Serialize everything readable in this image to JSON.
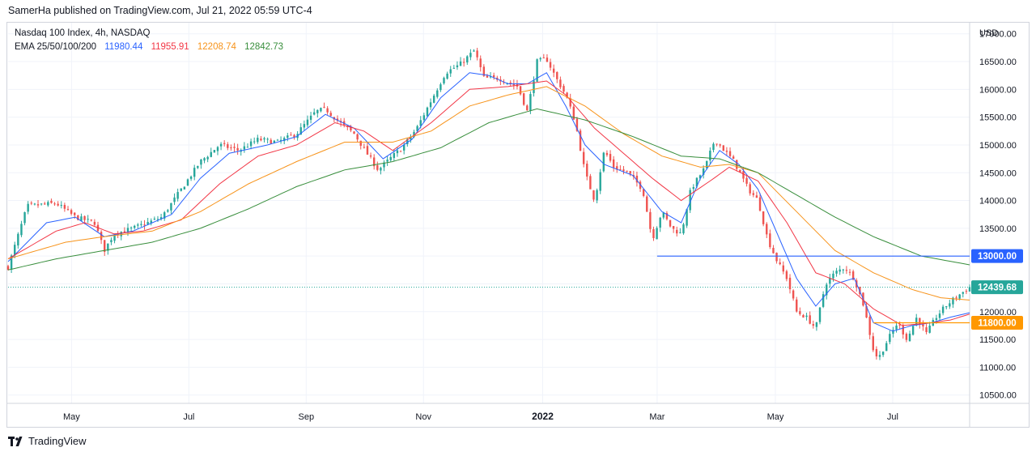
{
  "header": {
    "published": "SamerHa published on TradingView.com, Jul 21, 2022 05:59 UTC-4"
  },
  "legend": {
    "symbol": "Nasdaq 100 Index, 4h, NASDAQ",
    "ema_label": "EMA 25/50/100/200",
    "ema_values": [
      {
        "value": "11980.44",
        "color": "#2962ff"
      },
      {
        "value": "11955.91",
        "color": "#f23645"
      },
      {
        "value": "12208.74",
        "color": "#f7931a"
      },
      {
        "value": "12842.73",
        "color": "#388e3c"
      }
    ]
  },
  "footer": {
    "brand": "TradingView"
  },
  "chart_data": {
    "type": "candlestick",
    "currency": "USD",
    "ylim": [
      10350,
      17200
    ],
    "y_ticks": [
      "10500.00",
      "11000.00",
      "11500.00",
      "12000.00",
      "12500.00",
      "13000.00",
      "13500.00",
      "14000.00",
      "14500.00",
      "15000.00",
      "15500.00",
      "16000.00",
      "16500.00",
      "17000.00"
    ],
    "x_ticks": [
      {
        "label": "May",
        "t": 0.066,
        "bold": false
      },
      {
        "label": "Jul",
        "t": 0.188,
        "bold": false
      },
      {
        "label": "Sep",
        "t": 0.31,
        "bold": false
      },
      {
        "label": "Nov",
        "t": 0.432,
        "bold": false
      },
      {
        "label": "2022",
        "t": 0.556,
        "bold": true
      },
      {
        "label": "Mar",
        "t": 0.675,
        "bold": false
      },
      {
        "label": "May",
        "t": 0.798,
        "bold": false
      },
      {
        "label": "Jul",
        "t": 0.92,
        "bold": false
      }
    ],
    "price_path": [
      [
        0,
        12800
      ],
      [
        0.02,
        13900
      ],
      [
        0.05,
        13950
      ],
      [
        0.07,
        13700
      ],
      [
        0.09,
        13600
      ],
      [
        0.1,
        13100
      ],
      [
        0.11,
        13400
      ],
      [
        0.13,
        13500
      ],
      [
        0.16,
        13700
      ],
      [
        0.18,
        14200
      ],
      [
        0.2,
        14700
      ],
      [
        0.22,
        15000
      ],
      [
        0.24,
        14900
      ],
      [
        0.26,
        15100
      ],
      [
        0.28,
        15050
      ],
      [
        0.3,
        15200
      ],
      [
        0.32,
        15600
      ],
      [
        0.33,
        15650
      ],
      [
        0.345,
        15400
      ],
      [
        0.36,
        15200
      ],
      [
        0.375,
        14800
      ],
      [
        0.385,
        14550
      ],
      [
        0.4,
        14800
      ],
      [
        0.41,
        14950
      ],
      [
        0.425,
        15300
      ],
      [
        0.44,
        15800
      ],
      [
        0.455,
        16300
      ],
      [
        0.47,
        16450
      ],
      [
        0.485,
        16700
      ],
      [
        0.495,
        16200
      ],
      [
        0.51,
        16200
      ],
      [
        0.53,
        16050
      ],
      [
        0.54,
        15600
      ],
      [
        0.55,
        16500
      ],
      [
        0.56,
        16550
      ],
      [
        0.57,
        16200
      ],
      [
        0.58,
        15900
      ],
      [
        0.59,
        15400
      ],
      [
        0.6,
        14500
      ],
      [
        0.61,
        14000
      ],
      [
        0.62,
        14900
      ],
      [
        0.63,
        14600
      ],
      [
        0.645,
        14500
      ],
      [
        0.66,
        14200
      ],
      [
        0.67,
        13300
      ],
      [
        0.68,
        13800
      ],
      [
        0.69,
        13500
      ],
      [
        0.7,
        13400
      ],
      [
        0.71,
        14200
      ],
      [
        0.725,
        14600
      ],
      [
        0.735,
        15100
      ],
      [
        0.745,
        14900
      ],
      [
        0.755,
        14700
      ],
      [
        0.77,
        14200
      ],
      [
        0.78,
        14000
      ],
      [
        0.79,
        13300
      ],
      [
        0.8,
        12900
      ],
      [
        0.81,
        12600
      ],
      [
        0.82,
        12000
      ],
      [
        0.83,
        11900
      ],
      [
        0.84,
        11700
      ],
      [
        0.85,
        12500
      ],
      [
        0.86,
        12700
      ],
      [
        0.87,
        12800
      ],
      [
        0.88,
        12600
      ],
      [
        0.89,
        12100
      ],
      [
        0.9,
        11300
      ],
      [
        0.905,
        11150
      ],
      [
        0.915,
        11500
      ],
      [
        0.925,
        11800
      ],
      [
        0.935,
        11500
      ],
      [
        0.945,
        11900
      ],
      [
        0.955,
        11600
      ],
      [
        0.965,
        11900
      ],
      [
        0.975,
        12100
      ],
      [
        0.985,
        12250
      ],
      [
        1,
        12439.68
      ]
    ],
    "ema": [
      {
        "name": "EMA 25",
        "value": 11980.44,
        "color": "#2962ff",
        "path": [
          [
            0,
            12900
          ],
          [
            0.04,
            13600
          ],
          [
            0.07,
            13700
          ],
          [
            0.1,
            13350
          ],
          [
            0.13,
            13450
          ],
          [
            0.17,
            13750
          ],
          [
            0.2,
            14400
          ],
          [
            0.23,
            14850
          ],
          [
            0.27,
            15000
          ],
          [
            0.3,
            15150
          ],
          [
            0.33,
            15550
          ],
          [
            0.36,
            15300
          ],
          [
            0.39,
            14750
          ],
          [
            0.42,
            15100
          ],
          [
            0.45,
            15850
          ],
          [
            0.48,
            16300
          ],
          [
            0.5,
            16250
          ],
          [
            0.52,
            16100
          ],
          [
            0.54,
            16100
          ],
          [
            0.56,
            16300
          ],
          [
            0.58,
            15700
          ],
          [
            0.6,
            15000
          ],
          [
            0.62,
            14650
          ],
          [
            0.65,
            14450
          ],
          [
            0.68,
            13800
          ],
          [
            0.7,
            13600
          ],
          [
            0.72,
            14400
          ],
          [
            0.74,
            14900
          ],
          [
            0.76,
            14650
          ],
          [
            0.78,
            14200
          ],
          [
            0.8,
            13400
          ],
          [
            0.82,
            12600
          ],
          [
            0.84,
            12100
          ],
          [
            0.86,
            12500
          ],
          [
            0.88,
            12600
          ],
          [
            0.9,
            11800
          ],
          [
            0.92,
            11650
          ],
          [
            0.94,
            11750
          ],
          [
            0.96,
            11800
          ],
          [
            0.98,
            11900
          ],
          [
            1,
            11980.44
          ]
        ]
      },
      {
        "name": "EMA 50",
        "value": 11955.91,
        "color": "#f23645",
        "path": [
          [
            0,
            12950
          ],
          [
            0.05,
            13450
          ],
          [
            0.08,
            13600
          ],
          [
            0.11,
            13400
          ],
          [
            0.14,
            13450
          ],
          [
            0.18,
            13650
          ],
          [
            0.22,
            14300
          ],
          [
            0.26,
            14800
          ],
          [
            0.3,
            15000
          ],
          [
            0.34,
            15400
          ],
          [
            0.37,
            15250
          ],
          [
            0.4,
            14900
          ],
          [
            0.44,
            15400
          ],
          [
            0.48,
            16000
          ],
          [
            0.52,
            16050
          ],
          [
            0.56,
            16150
          ],
          [
            0.58,
            15900
          ],
          [
            0.61,
            15300
          ],
          [
            0.64,
            14850
          ],
          [
            0.67,
            14400
          ],
          [
            0.7,
            14000
          ],
          [
            0.73,
            14350
          ],
          [
            0.75,
            14600
          ],
          [
            0.78,
            14350
          ],
          [
            0.81,
            13600
          ],
          [
            0.84,
            12700
          ],
          [
            0.87,
            12500
          ],
          [
            0.9,
            12050
          ],
          [
            0.93,
            11750
          ],
          [
            0.96,
            11800
          ],
          [
            0.98,
            11850
          ],
          [
            1,
            11955.91
          ]
        ]
      },
      {
        "name": "EMA 100",
        "value": 12208.74,
        "color": "#f7931a",
        "path": [
          [
            0,
            12950
          ],
          [
            0.06,
            13250
          ],
          [
            0.1,
            13350
          ],
          [
            0.15,
            13450
          ],
          [
            0.2,
            13800
          ],
          [
            0.25,
            14300
          ],
          [
            0.3,
            14700
          ],
          [
            0.35,
            15050
          ],
          [
            0.4,
            15050
          ],
          [
            0.44,
            15250
          ],
          [
            0.48,
            15700
          ],
          [
            0.52,
            15900
          ],
          [
            0.56,
            16050
          ],
          [
            0.6,
            15700
          ],
          [
            0.64,
            15200
          ],
          [
            0.68,
            14800
          ],
          [
            0.72,
            14600
          ],
          [
            0.75,
            14650
          ],
          [
            0.78,
            14500
          ],
          [
            0.82,
            13800
          ],
          [
            0.86,
            13100
          ],
          [
            0.9,
            12700
          ],
          [
            0.94,
            12400
          ],
          [
            0.97,
            12250
          ],
          [
            1,
            12208.74
          ]
        ]
      },
      {
        "name": "EMA 200",
        "value": 12842.73,
        "color": "#388e3c",
        "path": [
          [
            0,
            12750
          ],
          [
            0.05,
            12950
          ],
          [
            0.1,
            13100
          ],
          [
            0.15,
            13250
          ],
          [
            0.2,
            13500
          ],
          [
            0.25,
            13850
          ],
          [
            0.3,
            14250
          ],
          [
            0.35,
            14550
          ],
          [
            0.4,
            14700
          ],
          [
            0.45,
            14950
          ],
          [
            0.5,
            15400
          ],
          [
            0.55,
            15650
          ],
          [
            0.6,
            15450
          ],
          [
            0.65,
            15150
          ],
          [
            0.7,
            14800
          ],
          [
            0.74,
            14750
          ],
          [
            0.78,
            14500
          ],
          [
            0.82,
            14100
          ],
          [
            0.86,
            13700
          ],
          [
            0.9,
            13350
          ],
          [
            0.95,
            13000
          ],
          [
            1,
            12842.73
          ]
        ]
      }
    ],
    "levels": [
      {
        "name": "Level 13000",
        "value": 13000,
        "label": "13000.00",
        "color": "#2962ff",
        "start_t": 0.675
      },
      {
        "name": "Level 11800",
        "value": 11800,
        "label": "11800.00",
        "color": "#ff9800",
        "start_t": 0.9
      }
    ],
    "last_price": {
      "value": 12439.68,
      "label": "12439.68",
      "color": "#26a69a"
    }
  }
}
